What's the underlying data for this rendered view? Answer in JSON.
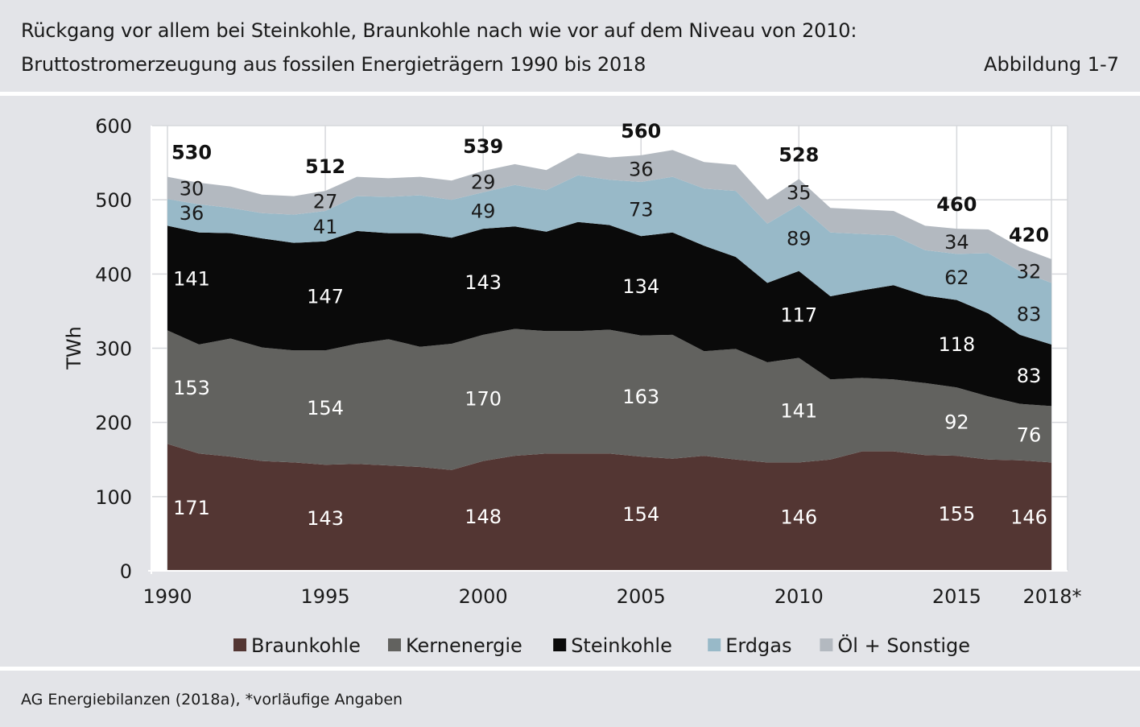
{
  "header": {
    "title_line1": "Rückgang vor allem bei Steinkohle, Braunkohle nach wie vor auf dem Niveau von 2010:",
    "title_line2": "Bruttostromerzeugung aus fossilen Energieträgern 1990 bis 2018",
    "figure_label": "Abbildung 1-7"
  },
  "footer": {
    "source": "AG Energiebilanzen (2018a), *vorläufige Angaben"
  },
  "chart_data": {
    "type": "area",
    "stacked": true,
    "ylabel": "TWh",
    "ylim": [
      0,
      600
    ],
    "yticks": [
      0,
      100,
      200,
      300,
      400,
      500,
      600
    ],
    "x": [
      1990,
      1991,
      1992,
      1993,
      1994,
      1995,
      1996,
      1997,
      1998,
      1999,
      2000,
      2001,
      2002,
      2003,
      2004,
      2005,
      2006,
      2007,
      2008,
      2009,
      2010,
      2011,
      2012,
      2013,
      2014,
      2015,
      2016,
      2017,
      2018
    ],
    "xticks": [
      {
        "x": 1990,
        "label": "1990"
      },
      {
        "x": 1995,
        "label": "1995"
      },
      {
        "x": 2000,
        "label": "2000"
      },
      {
        "x": 2005,
        "label": "2005"
      },
      {
        "x": 2010,
        "label": "2010"
      },
      {
        "x": 2015,
        "label": "2015"
      },
      {
        "x": 2018,
        "label": "2018*"
      }
    ],
    "grid": true,
    "legend_position": "bottom",
    "series": [
      {
        "name": "Braunkohle",
        "color": "#533633",
        "values": [
          171,
          158,
          154,
          148,
          146,
          143,
          144,
          142,
          140,
          136,
          148,
          155,
          158,
          158,
          158,
          154,
          151,
          155,
          150,
          146,
          146,
          150,
          161,
          161,
          156,
          155,
          150,
          149,
          146
        ]
      },
      {
        "name": "Kernenergie",
        "color": "#62625f",
        "values": [
          153,
          147,
          159,
          153,
          151,
          154,
          162,
          170,
          162,
          170,
          170,
          171,
          165,
          165,
          167,
          163,
          167,
          141,
          149,
          135,
          141,
          108,
          99,
          97,
          97,
          92,
          85,
          76,
          76
        ]
      },
      {
        "name": "Steinkohle",
        "color": "#0a0a0a",
        "values": [
          141,
          151,
          142,
          147,
          145,
          147,
          152,
          143,
          153,
          143,
          143,
          138,
          134,
          147,
          141,
          134,
          138,
          142,
          124,
          107,
          117,
          112,
          118,
          127,
          118,
          118,
          112,
          93,
          83
        ]
      },
      {
        "name": "Erdgas",
        "color": "#98b9c8",
        "values": [
          36,
          38,
          34,
          34,
          38,
          41,
          47,
          49,
          51,
          51,
          49,
          56,
          56,
          63,
          61,
          73,
          75,
          77,
          89,
          80,
          89,
          86,
          76,
          67,
          61,
          62,
          81,
          86,
          83
        ]
      },
      {
        "name": "Öl + Sonstige",
        "color": "#b3b9c0",
        "values": [
          30,
          29,
          29,
          25,
          25,
          27,
          26,
          25,
          25,
          26,
          29,
          28,
          27,
          30,
          30,
          36,
          36,
          36,
          35,
          32,
          35,
          33,
          33,
          33,
          33,
          34,
          32,
          32,
          32
        ]
      }
    ],
    "data_labels": [
      {
        "x": 1990,
        "values": [
          171,
          153,
          141,
          36,
          30
        ],
        "total": 530
      },
      {
        "x": 1995,
        "values": [
          143,
          154,
          147,
          41,
          27
        ],
        "total": 512
      },
      {
        "x": 2000,
        "values": [
          148,
          170,
          143,
          49,
          29
        ],
        "total": 539
      },
      {
        "x": 2005,
        "values": [
          154,
          163,
          134,
          73,
          36
        ],
        "total": 560
      },
      {
        "x": 2010,
        "values": [
          146,
          141,
          117,
          89,
          35
        ],
        "total": 528
      },
      {
        "x": 2015,
        "values": [
          155,
          92,
          118,
          62,
          34
        ],
        "total": 460
      },
      {
        "x": 2018,
        "values": [
          146,
          76,
          83,
          83,
          32
        ],
        "total": 420
      }
    ]
  }
}
